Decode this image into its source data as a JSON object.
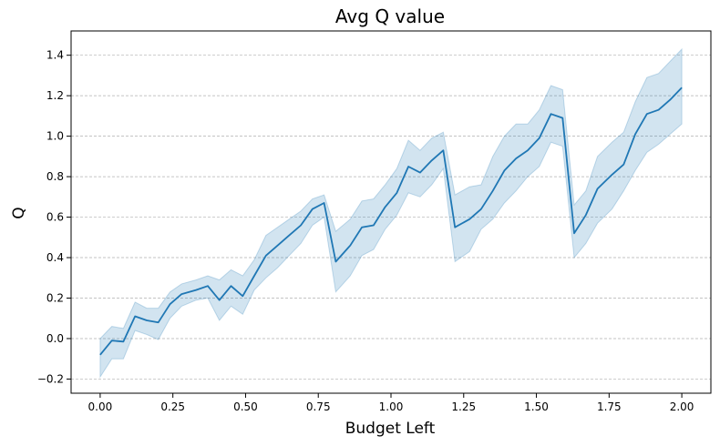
{
  "chart_data": {
    "type": "line",
    "title": "Avg Q value",
    "xlabel": "Budget Left",
    "ylabel": "Q",
    "xlim": [
      -0.1,
      2.1
    ],
    "ylim": [
      -0.27,
      1.52
    ],
    "xticks": [
      "0.00",
      "0.25",
      "0.50",
      "0.75",
      "1.00",
      "1.25",
      "1.50",
      "1.75",
      "2.00"
    ],
    "yticks": [
      "−0.2",
      "0.0",
      "0.2",
      "0.4",
      "0.6",
      "0.8",
      "1.0",
      "1.2",
      "1.4"
    ],
    "grid": "horizontal dashed",
    "colors": {
      "line": "#1f77b4",
      "band": "#1f77b4"
    },
    "series": [
      {
        "x": [
          0.0,
          0.04,
          0.08,
          0.12,
          0.16,
          0.2,
          0.24,
          0.28,
          0.33,
          0.37,
          0.41,
          0.45,
          0.49,
          0.53,
          0.57,
          0.61,
          0.65,
          0.69,
          0.73,
          0.77,
          0.81,
          0.86,
          0.9,
          0.94,
          0.98,
          1.02,
          1.06,
          1.1,
          1.14,
          1.18,
          1.22,
          1.27,
          1.31,
          1.35,
          1.39,
          1.43,
          1.47,
          1.51,
          1.55,
          1.59,
          1.63,
          1.67,
          1.71,
          1.76,
          1.8,
          1.84,
          1.88,
          1.92,
          1.96,
          2.0
        ],
        "y": [
          -0.08,
          -0.01,
          -0.015,
          0.11,
          0.09,
          0.08,
          0.17,
          0.22,
          0.24,
          0.26,
          0.19,
          0.26,
          0.21,
          0.31,
          0.41,
          0.46,
          0.51,
          0.56,
          0.64,
          0.67,
          0.38,
          0.46,
          0.55,
          0.56,
          0.65,
          0.72,
          0.85,
          0.82,
          0.88,
          0.93,
          0.55,
          0.59,
          0.64,
          0.73,
          0.83,
          0.89,
          0.93,
          0.99,
          1.11,
          1.09,
          0.52,
          0.61,
          0.74,
          0.81,
          0.86,
          1.01,
          1.11,
          1.13,
          1.18,
          1.24
        ],
        "lower": [
          -0.19,
          -0.1,
          -0.1,
          0.04,
          0.02,
          -0.005,
          0.1,
          0.16,
          0.19,
          0.2,
          0.09,
          0.16,
          0.12,
          0.24,
          0.3,
          0.35,
          0.41,
          0.47,
          0.56,
          0.6,
          0.23,
          0.31,
          0.41,
          0.44,
          0.54,
          0.61,
          0.72,
          0.7,
          0.76,
          0.84,
          0.38,
          0.43,
          0.54,
          0.59,
          0.67,
          0.73,
          0.8,
          0.85,
          0.97,
          0.95,
          0.4,
          0.47,
          0.57,
          0.64,
          0.73,
          0.83,
          0.92,
          0.96,
          1.01,
          1.06
        ],
        "upper": [
          0.0,
          0.06,
          0.05,
          0.18,
          0.15,
          0.15,
          0.23,
          0.27,
          0.29,
          0.31,
          0.29,
          0.34,
          0.31,
          0.39,
          0.51,
          0.55,
          0.59,
          0.63,
          0.69,
          0.71,
          0.53,
          0.59,
          0.68,
          0.69,
          0.76,
          0.84,
          0.98,
          0.93,
          0.99,
          1.02,
          0.71,
          0.75,
          0.76,
          0.9,
          1.0,
          1.06,
          1.06,
          1.13,
          1.25,
          1.23,
          0.66,
          0.73,
          0.9,
          0.97,
          1.02,
          1.17,
          1.29,
          1.31,
          1.37,
          1.43
        ]
      }
    ]
  }
}
